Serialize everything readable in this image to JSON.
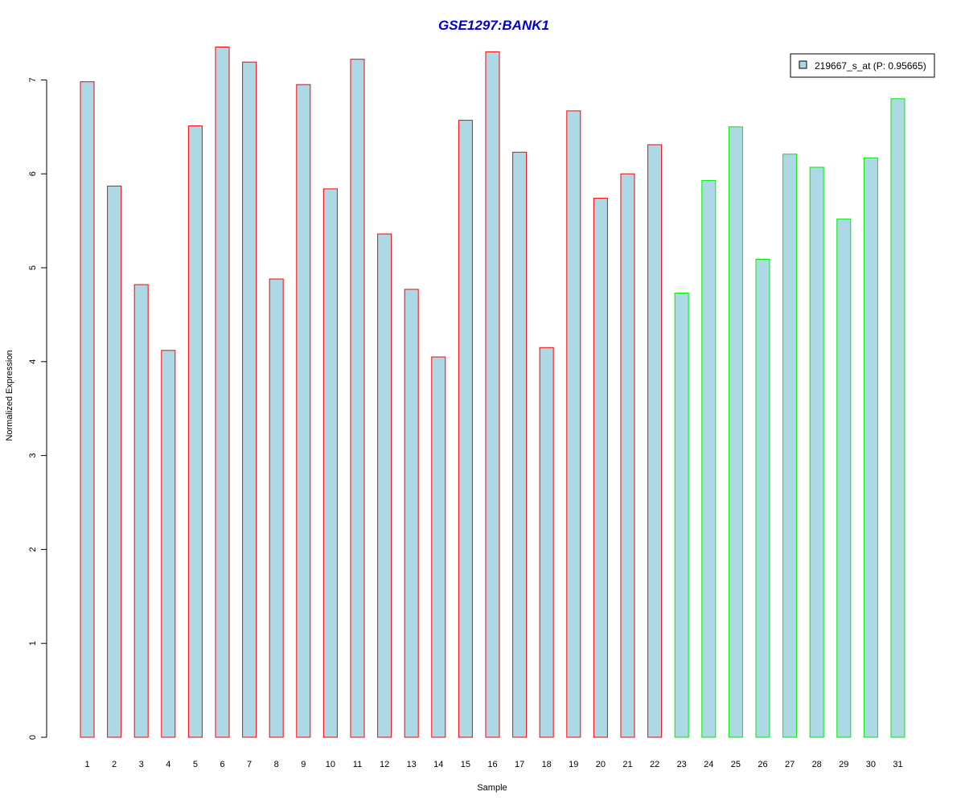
{
  "chart_data": {
    "type": "bar",
    "title": "GSE1297:BANK1",
    "xlabel": "Sample",
    "ylabel": "Normalized Expression",
    "categories": [
      "1",
      "2",
      "3",
      "4",
      "5",
      "6",
      "7",
      "8",
      "9",
      "10",
      "11",
      "12",
      "13",
      "14",
      "15",
      "16",
      "17",
      "18",
      "19",
      "20",
      "21",
      "22",
      "23",
      "24",
      "25",
      "26",
      "27",
      "28",
      "29",
      "30",
      "31"
    ],
    "series": [
      {
        "name": "219667_s_at (P: 0.95665)",
        "values": [
          6.98,
          5.87,
          4.82,
          4.12,
          6.51,
          7.35,
          7.19,
          4.88,
          6.95,
          5.84,
          7.22,
          5.36,
          4.77,
          4.05,
          6.57,
          7.3,
          6.23,
          4.15,
          6.67,
          5.74,
          6.0,
          6.31,
          4.73,
          5.93,
          6.5,
          5.09,
          6.21,
          6.07,
          5.52,
          6.17,
          6.8
        ]
      }
    ],
    "group_border_colors": [
      "#ff0000",
      "#ff0000",
      "#ff0000",
      "#ff0000",
      "#ff0000",
      "#ff0000",
      "#ff0000",
      "#ff0000",
      "#ff0000",
      "#ff0000",
      "#ff0000",
      "#ff0000",
      "#ff0000",
      "#ff0000",
      "#ff0000",
      "#ff0000",
      "#ff0000",
      "#ff0000",
      "#ff0000",
      "#ff0000",
      "#ff0000",
      "#ff0000",
      "#00ee00",
      "#00ee00",
      "#00ee00",
      "#00ee00",
      "#00ee00",
      "#00ee00",
      "#00ee00",
      "#00ee00",
      "#00ee00"
    ],
    "ylim": [
      0,
      7.35
    ],
    "yticks": [
      "0",
      "1",
      "2",
      "3",
      "4",
      "5",
      "6",
      "7"
    ],
    "legend_position": "top-right",
    "grid": false,
    "colors": {
      "bar_fill": "#add8e6",
      "title": "#0000cc",
      "axis": "#000000"
    }
  }
}
